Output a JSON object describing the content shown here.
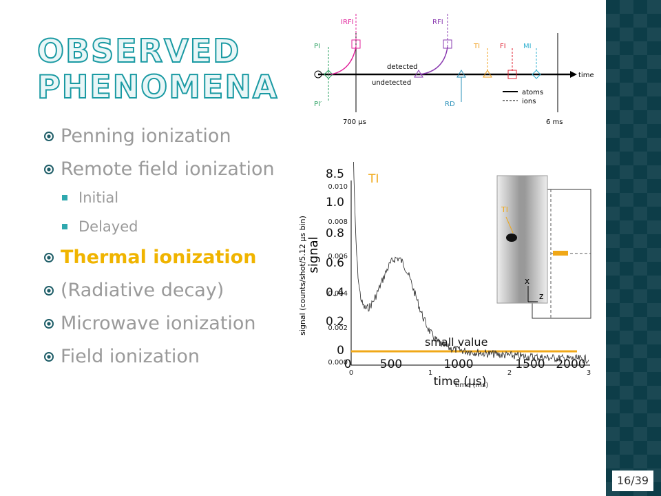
{
  "title": "OBSERVED PHENOMENA",
  "bullets": [
    {
      "text": "Penning ionization"
    },
    {
      "text": "Remote field ionization",
      "sub": [
        "Initial",
        "Delayed"
      ]
    },
    {
      "text": "Thermal ionization"
    },
    {
      "text": "(Radiative decay)"
    },
    {
      "text": "Microwave ionization"
    },
    {
      "text": "Field ionization"
    }
  ],
  "timeline": {
    "processes": [
      "PI",
      "PI′",
      "IRFI",
      "RFI",
      "RD",
      "TI",
      "FI",
      "MI"
    ],
    "detected": "detected",
    "undetected": "undetected",
    "axis": "time",
    "legend": [
      "atoms",
      "ions"
    ],
    "times": [
      "700 µs",
      "6 ms"
    ]
  },
  "graph": {
    "outer_y_label": "signal (counts/shot/5.12 µs bin)",
    "outer_yticks": [
      "0.000",
      "0.002",
      "0.004",
      "0.006",
      "0.008",
      "0.010"
    ],
    "outer_x_label": "time (ms)",
    "outer_xticks": [
      "0",
      "1",
      "2",
      "3"
    ],
    "y_label": "signal",
    "yticks": [
      "0",
      "0.2",
      "0.4",
      "0.6",
      "0.8",
      "1.0",
      "8.5"
    ],
    "x_label": "time (µs)",
    "xticks": [
      "0",
      "500",
      "1000",
      "1500",
      "2000"
    ],
    "marker": "TI",
    "annotation": "small value",
    "inset": [
      "TI",
      "x",
      "z"
    ]
  },
  "page_number": "16/39"
}
